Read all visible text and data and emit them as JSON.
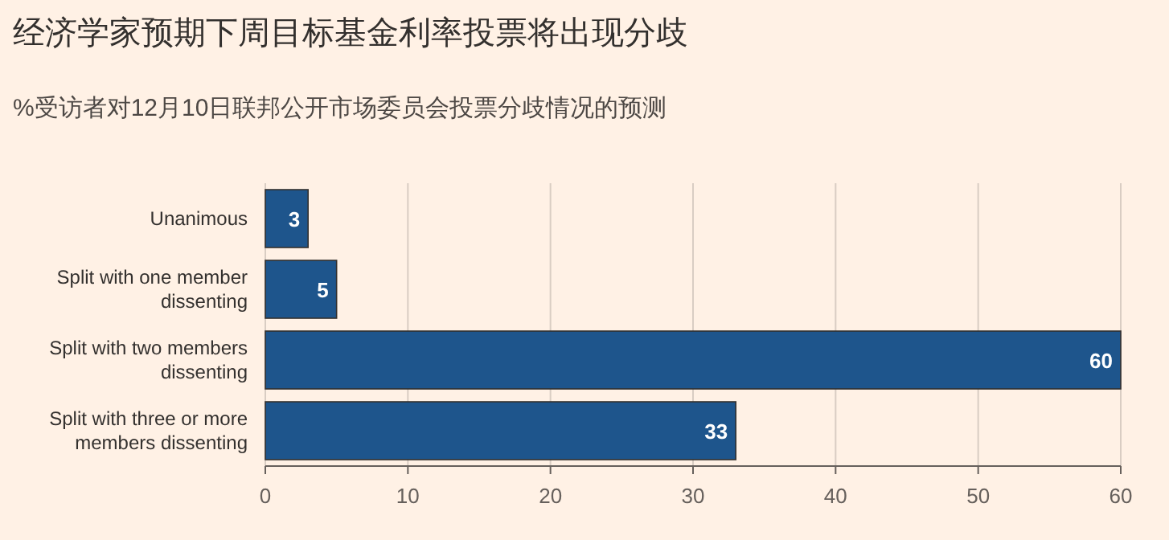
{
  "chart_data": {
    "type": "bar",
    "orientation": "horizontal",
    "title": "经济学家预期下周目标基金利率投票将出现分歧",
    "subtitle": "%受访者对12月10日联邦公开市场委员会投票分歧情况的预测",
    "categories": [
      "Unanimous",
      "Split with one member dissenting",
      "Split with two members dissenting",
      "Split with three or more members dissenting"
    ],
    "values": [
      3,
      5,
      60,
      33
    ],
    "color": "#1e558c",
    "data_labels": true,
    "xlim": [
      0,
      60
    ],
    "xticks": [
      0,
      10,
      20,
      30,
      40,
      50,
      60
    ],
    "grid": "x"
  }
}
